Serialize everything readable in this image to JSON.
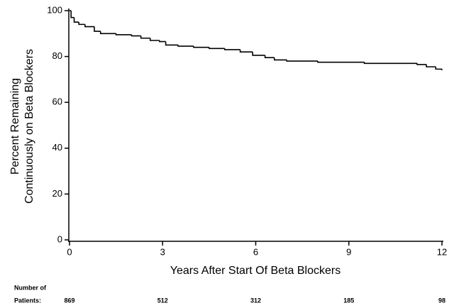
{
  "chart_data": {
    "type": "step",
    "xlabel": "Years After Start Of Beta Blockers",
    "ylabel": [
      "Percent Remaining",
      "Continuously on Beta Blockers"
    ],
    "x": [
      0,
      0.05,
      0.15,
      0.3,
      0.5,
      0.8,
      1.0,
      1.5,
      2.0,
      2.3,
      2.6,
      2.9,
      3.1,
      3.5,
      4.0,
      4.5,
      5.0,
      5.5,
      5.9,
      6.3,
      6.6,
      7.0,
      8.0,
      9.5,
      11.2,
      11.5,
      11.8,
      12
    ],
    "series": [
      {
        "color": "#000000",
        "values": [
          100,
          97,
          95,
          94,
          93,
          91,
          90,
          89.5,
          89,
          88,
          87,
          86.5,
          85,
          84.5,
          84,
          83.5,
          83,
          82,
          80.5,
          79.5,
          78.5,
          78,
          77.5,
          77,
          76.5,
          75.5,
          74.5,
          74
        ]
      }
    ],
    "xlim": [
      0,
      12
    ],
    "xticks": [
      0,
      3,
      6,
      9,
      12
    ],
    "ylim": [
      0,
      100
    ],
    "yticks": [
      0,
      20,
      40,
      60,
      80,
      100
    ],
    "at_risk": {
      "label": [
        "Number of",
        "Patients:"
      ],
      "values": [
        "869",
        "512",
        "312",
        "185",
        "98"
      ]
    }
  }
}
